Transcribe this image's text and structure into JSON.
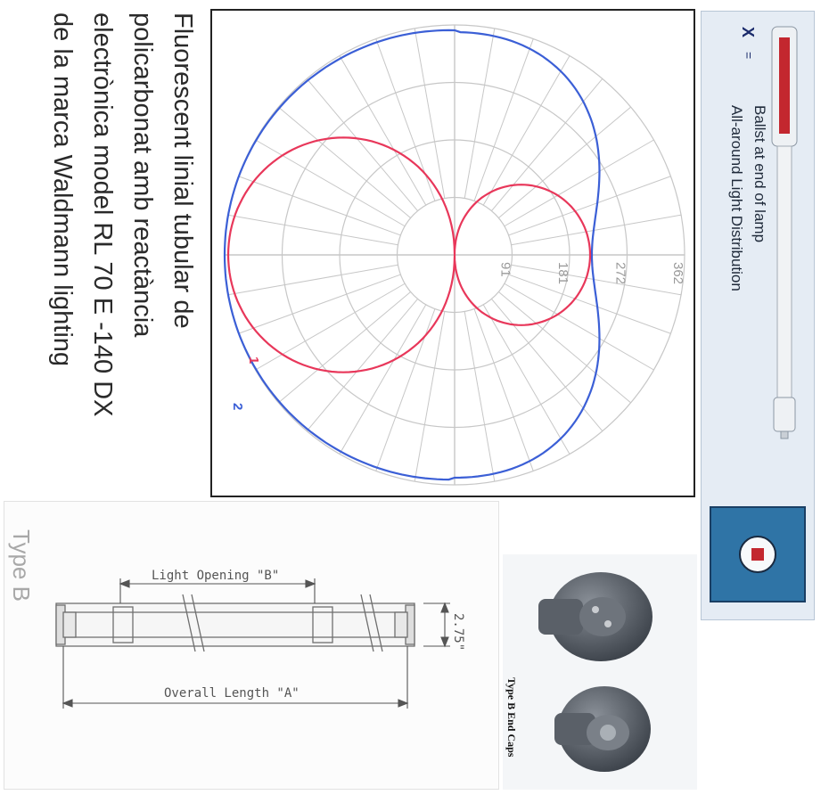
{
  "caption": {
    "lines": [
      "Fluorescent linial tubular de",
      "policarbonat amb reactància",
      "electrònica model RL 70 E -140 DX",
      "de la marca Waldmann lighting"
    ]
  },
  "legend": {
    "x_symbol": "X",
    "equals": "=",
    "line1": "Ballst at end of lamp",
    "line2": "All-around Light Distribution"
  },
  "polar": {
    "ring_labels": [
      "91",
      "181",
      "272",
      "362"
    ],
    "curve_labels": [
      "1",
      "2"
    ],
    "colors": {
      "curve1": "#e8375a",
      "curve2": "#3b5fd6",
      "grid": "#c7c7c7"
    }
  },
  "drawing": {
    "light_opening": "Light Opening \"B\"",
    "overall_length": "Overall Length \"A\"",
    "diameter": "2.75\"",
    "type_label": "Type B"
  },
  "photo": {
    "caption": "Type B End Caps"
  }
}
